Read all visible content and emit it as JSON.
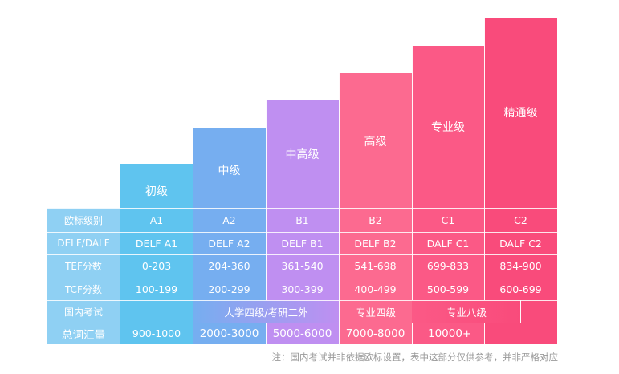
{
  "row_labels": [
    "欧标级别",
    "DELF/DALF",
    "TEF分数",
    "TCF分数",
    "国内考试",
    "总词汇量"
  ],
  "levels": [
    {
      "name": "初级",
      "cefr": "A1",
      "delf": "DELF A1",
      "tef": "0-203",
      "tcf": "100-199",
      "vocab": "900-1000",
      "color": "#5fc4ef"
    },
    {
      "name": "中级",
      "cefr": "A2",
      "delf": "DELF A2",
      "tef": "204-360",
      "tcf": "200-299",
      "vocab": "2000-3000",
      "color": "#76aef0"
    },
    {
      "name": "中高级",
      "cefr": "B1",
      "delf": "DELF B1",
      "tef": "361-540",
      "tcf": "300-399",
      "vocab": "5000-6000",
      "color": "#bf8ff1"
    },
    {
      "name": "高级",
      "cefr": "B2",
      "delf": "DELF B2",
      "tef": "541-698",
      "tcf": "400-499",
      "vocab": "7000-8000",
      "color": "#fc6a90"
    },
    {
      "name": "专业级",
      "cefr": "C1",
      "delf": "DALF C1",
      "tef": "699-833",
      "tcf": "500-599",
      "vocab": "10000+",
      "color": "#fb5986"
    },
    {
      "name": "精通级",
      "cefr": "C2",
      "delf": "DALF C2",
      "tef": "834-900",
      "tcf": "600-699",
      "vocab": "",
      "color": "#f94b7b"
    }
  ],
  "domestic": {
    "cet": "大学四级/考研二外",
    "tem4": "专业四级",
    "tem8": "专业八级"
  },
  "footnote": "注：国内考试并非依据欧标设置，表中这部分仅供参考，并非严格对应",
  "label_color": "#8fd0f3"
}
